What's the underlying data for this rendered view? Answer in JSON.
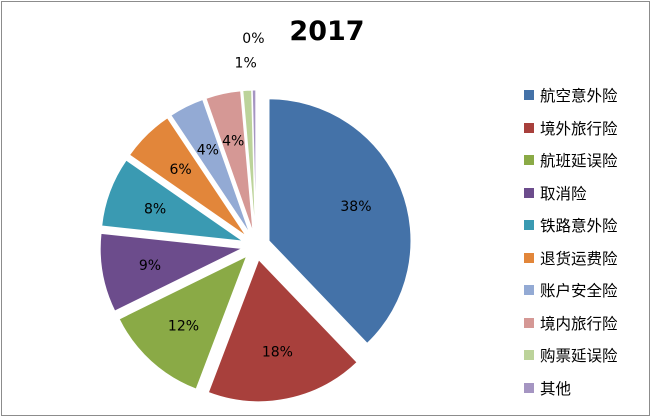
{
  "chart_data": {
    "type": "pie",
    "title": "2017",
    "legend_position": "right",
    "slices": [
      {
        "label": "航空意外险",
        "value": 38,
        "display": "38%",
        "color": "#4472a8"
      },
      {
        "label": "境外旅行险",
        "value": 18,
        "display": "18%",
        "color": "#a8403c"
      },
      {
        "label": "航班延误险",
        "value": 12,
        "display": "12%",
        "color": "#8aaa46"
      },
      {
        "label": "取消险",
        "value": 9,
        "display": "9%",
        "color": "#6c4c8c"
      },
      {
        "label": "铁路意外险",
        "value": 8,
        "display": "8%",
        "color": "#3a9ab2"
      },
      {
        "label": "退货运费险",
        "value": 6,
        "display": "6%",
        "color": "#e2863a"
      },
      {
        "label": "账户安全险",
        "value": 4,
        "display": "4%",
        "color": "#93aad4"
      },
      {
        "label": "境内旅行险",
        "value": 4,
        "display": "4%",
        "color": "#d59895"
      },
      {
        "label": "购票延误险",
        "value": 1,
        "display": "1%",
        "color": "#bcd39a"
      },
      {
        "label": "其他",
        "value": 0.4,
        "display": "0%",
        "color": "#a595c2"
      }
    ]
  }
}
